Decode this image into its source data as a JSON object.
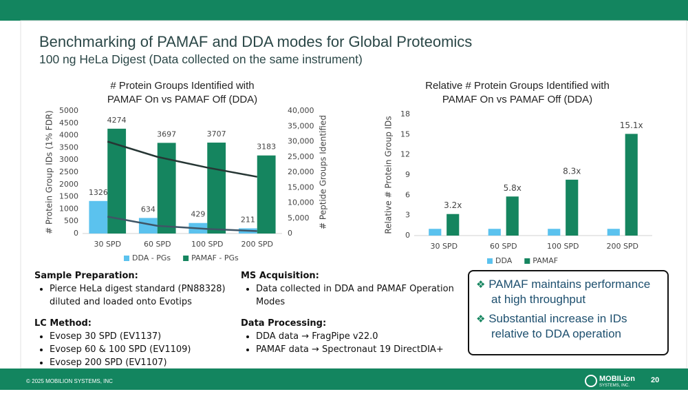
{
  "title": "Benchmarking of PAMAF and DDA modes for Global Proteomics",
  "subtitle": "100 ng HeLa Digest (Data collected on the same instrument)",
  "chart_data": [
    {
      "type": "bar",
      "title": [
        "# Protein Groups Identified with",
        "PAMAF On vs PAMAF Off (DDA)"
      ],
      "y_label": "# Protein Group IDs (1% FDR)",
      "y2_label": "# Peptide Groups Identified",
      "categories": [
        "30 SPD",
        "60 SPD",
        "100 SPD",
        "200 SPD"
      ],
      "series": [
        {
          "name": "DDA - PGs",
          "color": "#5bc2ee",
          "values": [
            1326,
            634,
            429,
            211
          ],
          "data_labels": true
        },
        {
          "name": "PAMAF - PGs",
          "color": "#15855f",
          "values": [
            4274,
            3697,
            3707,
            3183
          ],
          "data_labels": true
        },
        {
          "type": "line",
          "axis": "y2",
          "color": "#3f5566",
          "values": [
            5500,
            2500,
            1500,
            800
          ]
        },
        {
          "type": "line",
          "axis": "y2",
          "color": "#263634",
          "values": [
            30000,
            25000,
            21500,
            18500
          ]
        }
      ],
      "ylim": [
        0,
        5000
      ],
      "yticks": [
        0,
        500,
        1000,
        1500,
        2000,
        2500,
        3000,
        3500,
        4000,
        4500,
        5000
      ],
      "y2lim": [
        0,
        40000
      ],
      "y2ticks": [
        0,
        {
          "value": 5000,
          "label": "5,000"
        },
        {
          "value": 10000,
          "label": "10,000"
        },
        {
          "value": 15000,
          "label": "15,000"
        },
        {
          "value": 20000,
          "label": "20,000"
        },
        {
          "value": 25000,
          "label": "25,000"
        },
        {
          "value": 30000,
          "label": "30,000"
        },
        {
          "value": 35000,
          "label": "35,000"
        },
        {
          "value": 40000,
          "label": "40,000"
        }
      ],
      "grid": false
    },
    {
      "type": "bar",
      "title": [
        "Relative # Protein Groups Identified with",
        "PAMAF On vs PAMAF Off (DDA)"
      ],
      "y_label": "Relative # Protein Group IDs",
      "categories": [
        "30 SPD",
        "60 SPD",
        "100 SPD",
        "200 SPD"
      ],
      "series": [
        {
          "name": "DDA",
          "color": "#5bc2ee",
          "values": [
            1,
            1,
            1,
            1
          ]
        },
        {
          "name": "PAMAF",
          "color": "#15855f",
          "values": [
            3.2,
            5.8,
            8.3,
            15.1
          ],
          "value_labels": [
            "3.2x",
            "5.8x",
            "8.3x",
            "15.1x"
          ]
        }
      ],
      "ylim": [
        0,
        18
      ],
      "yticks": [
        0,
        3,
        6,
        9,
        12,
        15,
        18
      ],
      "grid": false
    }
  ],
  "sample_prep": {
    "heading": "Sample Preparation:",
    "items": [
      "Pierce HeLa digest standard (PN88328) diluted and loaded onto Evotips"
    ]
  },
  "lc_method": {
    "heading": "LC Method:",
    "items": [
      "Evosep 30 SPD (EV1137)",
      "Evosep 60 & 100 SPD (EV1109)",
      "Evosep 200 SPD (EV1107)"
    ]
  },
  "ms_acquisition": {
    "heading": "MS Acquisition:",
    "items": [
      "Data collected in DDA and PAMAF Operation Modes"
    ]
  },
  "data_processing": {
    "heading": "Data Processing:",
    "items": [
      "DDA data → FragPipe v22.0",
      "PAMAF data → Spectronaut 19 DirectDIA+"
    ]
  },
  "highlights": [
    "PAMAF maintains performance at high throughput",
    "Substantial increase in IDs relative to DDA operation"
  ],
  "footer": {
    "copyright": "© 2025 MOBILION SYSTEMS, INC",
    "page": "20",
    "logo": "MOBILion",
    "logo_sub": "SYSTEMS, INC."
  }
}
